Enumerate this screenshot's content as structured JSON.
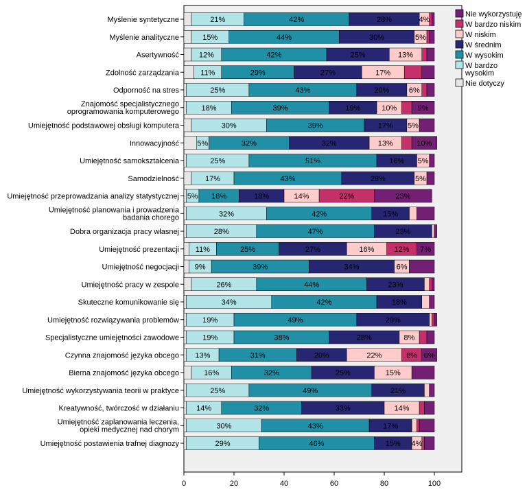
{
  "chart_data": {
    "type": "bar",
    "orientation": "horizontal",
    "stacked": true,
    "percent": true,
    "title": "",
    "xlabel": "",
    "ylabel": "",
    "xlim": [
      0,
      100
    ],
    "xticks": [
      0,
      20,
      40,
      60,
      80,
      100
    ],
    "legend_position": "top-right",
    "categories": [
      "Myślenie syntetyczne",
      "Myślenie analityczne",
      "Asertywność",
      "Zdolność zarządzania",
      "Odporność na stres",
      "Znajomość specjalistycznego\noprogramowania komputerowego",
      "Umiejętność podstawowej obsługi komputera",
      "Innowacyjność",
      "Umiejętność samokształcenia",
      "Samodzielność",
      "Umiejętność przeprowadzania analizy statystycznej",
      "Umiejętność planowania i prowadzenia\nbadania chorego",
      "Dobra organizacja pracy własnej",
      "Umiejętność prezentacji",
      "Umiejętność negocjacji",
      "Umiejętność pracy w zespole",
      "Skuteczne komunikowanie się",
      "Umiejętność rozwiązywania problemów",
      "Specjalistyczne umiejętności zawodowe",
      "Czynna znajomość języka obcego",
      "Bierna znajomość języka obcego",
      "Umiejętność wykorzystywania teorii w praktyce",
      "Kreatywność, twórczość w działaniu",
      "Umiejętność zaplanowania leczenia,\nopieki medycznej nad chorym",
      "Umiejętność postawienia trafnej diagnozy"
    ],
    "series": [
      {
        "name": "Nie dotyczy",
        "color": "#e6e6e6",
        "values": [
          3,
          3,
          3,
          4,
          1,
          1,
          3,
          5,
          1,
          3,
          1,
          1,
          1,
          2,
          2,
          3,
          1,
          1,
          1,
          1,
          3,
          1,
          1,
          1,
          1
        ]
      },
      {
        "name": "W bardzo wysokim",
        "color": "#b3e4e8",
        "values": [
          21,
          15,
          12,
          11,
          25,
          18,
          30,
          5,
          25,
          17,
          5,
          32,
          28,
          11,
          9,
          26,
          34,
          19,
          19,
          13,
          16,
          25,
          14,
          30,
          29
        ]
      },
      {
        "name": "W wysokim",
        "color": "#218fa6",
        "values": [
          42,
          44,
          42,
          29,
          43,
          39,
          39,
          32,
          51,
          43,
          16,
          42,
          47,
          25,
          39,
          44,
          42,
          49,
          38,
          31,
          32,
          49,
          32,
          43,
          46
        ]
      },
      {
        "name": "W średnim",
        "color": "#262673",
        "values": [
          28,
          30,
          25,
          27,
          20,
          19,
          17,
          32,
          16,
          29,
          18,
          15,
          23,
          27,
          34,
          23,
          18,
          29,
          28,
          20,
          25,
          21,
          33,
          17,
          15
        ]
      },
      {
        "name": "W niskim",
        "color": "#ffcccc",
        "values": [
          4,
          5,
          13,
          17,
          6,
          10,
          5,
          13,
          5,
          5,
          14,
          3,
          1,
          16,
          6,
          2,
          3,
          1,
          8,
          22,
          15,
          2,
          14,
          2,
          4
        ]
      },
      {
        "name": "W bardzo niskim",
        "color": "#c4306a",
        "values": [
          1,
          1,
          2,
          7,
          2,
          4,
          0,
          4,
          0,
          0,
          22,
          0,
          0,
          12,
          0,
          1,
          0,
          1,
          3,
          8,
          0,
          0,
          2,
          1,
          1
        ]
      },
      {
        "name": "Nie wykorzystuję",
        "color": "#731f73",
        "values": [
          1,
          2,
          3,
          5,
          3,
          9,
          6,
          10,
          2,
          3,
          23,
          7,
          1,
          7,
          10,
          1,
          2,
          1,
          3,
          6,
          9,
          2,
          4,
          6,
          4
        ]
      }
    ],
    "shown_labels": [
      [
        null,
        "21%",
        "42%",
        "28%",
        "4%",
        null,
        null
      ],
      [
        null,
        "15%",
        "44%",
        "30%",
        "5%",
        null,
        null
      ],
      [
        null,
        "12%",
        "42%",
        "25%",
        "13%",
        null,
        null
      ],
      [
        null,
        "11%",
        "29%",
        "27%",
        "17%",
        null,
        null
      ],
      [
        null,
        "25%",
        "43%",
        "20%",
        "6%",
        null,
        null
      ],
      [
        null,
        "18%",
        "39%",
        "19%",
        "10%",
        null,
        "9%"
      ],
      [
        null,
        "30%",
        "39%",
        "17%",
        "5%",
        null,
        null
      ],
      [
        null,
        "5%",
        "32%",
        "32%",
        "13%",
        null,
        "10%"
      ],
      [
        null,
        "25%",
        "51%",
        "16%",
        "5%",
        null,
        null
      ],
      [
        null,
        "17%",
        "43%",
        "29%",
        "5%",
        null,
        null
      ],
      [
        null,
        "5%",
        "16%",
        "18%",
        "14%",
        "22%",
        "23%"
      ],
      [
        null,
        "32%",
        "42%",
        "15%",
        null,
        null,
        null
      ],
      [
        null,
        "28%",
        "47%",
        "23%",
        null,
        null,
        null
      ],
      [
        null,
        "11%",
        "25%",
        "27%",
        "16%",
        "12%",
        "7%"
      ],
      [
        null,
        "9%",
        "39%",
        "34%",
        "6%",
        null,
        null
      ],
      [
        null,
        "26%",
        "44%",
        "23%",
        null,
        null,
        null
      ],
      [
        null,
        "34%",
        "42%",
        "18%",
        null,
        null,
        null
      ],
      [
        null,
        "19%",
        "49%",
        "29%",
        null,
        null,
        null
      ],
      [
        null,
        "19%",
        "38%",
        "28%",
        "8%",
        null,
        null
      ],
      [
        null,
        "13%",
        "31%",
        "20%",
        "22%",
        "8%",
        "6%"
      ],
      [
        null,
        "16%",
        "32%",
        "25%",
        "15%",
        null,
        null
      ],
      [
        null,
        "25%",
        "49%",
        "21%",
        null,
        null,
        null
      ],
      [
        null,
        "14%",
        "32%",
        "33%",
        "14%",
        null,
        null
      ],
      [
        null,
        "30%",
        "43%",
        "17%",
        null,
        null,
        null
      ],
      [
        null,
        "29%",
        "46%",
        "15%",
        "4%",
        null,
        null
      ]
    ],
    "legend": [
      "Nie wykorzystuję",
      "W bardzo niskim",
      "W niskim",
      "W średnim",
      "W wysokim",
      "W bardzo wysokim",
      "Nie dotyczy"
    ]
  }
}
